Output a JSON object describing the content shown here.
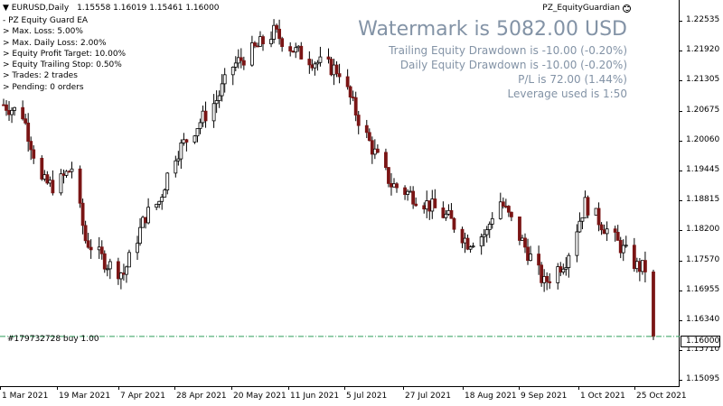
{
  "header": {
    "symbol": "EURUSD,Daily",
    "ohlc": "1.15558 1.16019 1.15461 1.16000"
  },
  "expert": {
    "name": "PZ_EquityGuardian",
    "icon": "smiley-icon"
  },
  "ea_panel": {
    "lines": [
      "- PZ Equity Guard EA",
      "> Max. Loss: 5.00%",
      "> Max. Daily Loss: 2.00%",
      "> Equity Profit Target: 10.00%",
      "> Equity Trailing Stop: 0.50%",
      "> Trades: 2 trades",
      "> Pending: 0 orders"
    ]
  },
  "watermark": {
    "title": "Watermark is 5082.00 USD",
    "lines": [
      "Trailing Equity Drawdown is -10.00 (-0.20%)",
      "Daily Equity Drawdown is -10.00 (-0.20%)",
      "P/L is 72.00 (1.44%)",
      "Leverage used is 1:50"
    ],
    "color": "#8393a6"
  },
  "order_line": {
    "label": "#179732728 buy 1.00",
    "price": 1.16,
    "color": "#2e9e5a"
  },
  "current_price": {
    "label": "1.16000",
    "value": 1.16
  },
  "colors": {
    "bull": "#000000",
    "bear": "#7a1515",
    "grid": "none"
  },
  "chart_data": {
    "type": "candlestick",
    "title": "EURUSD,Daily",
    "price_axis": {
      "ticks": [
        "1.22535",
        "1.21920",
        "1.21305",
        "1.20675",
        "1.20060",
        "1.19445",
        "1.18815",
        "1.18200",
        "1.17570",
        "1.16955",
        "1.16340",
        "1.15710",
        "1.15095"
      ],
      "ylim": [
        1.1495,
        1.2297
      ]
    },
    "time_axis": {
      "ticks": [
        "1 Mar 2021",
        "19 Mar 2021",
        "7 Apr 2021",
        "28 Apr 2021",
        "20 May 2021",
        "11 Jun 2021",
        "5 Jul 2021",
        "27 Jul 2021",
        "18 Aug 2021",
        "9 Sep 2021",
        "1 Oct 2021",
        "25 Oct 2021"
      ]
    },
    "path_days": [
      0,
      7,
      14,
      19,
      25,
      30,
      38,
      44,
      52,
      57,
      62,
      70,
      78,
      84,
      93,
      99,
      107,
      114,
      123,
      130,
      135,
      142,
      149,
      155,
      163,
      170,
      177,
      181,
      184,
      191,
      198,
      206,
      213,
      224,
      232,
      238
    ],
    "path_closes": [
      1.208,
      1.206,
      1.192,
      1.191,
      1.195,
      1.18,
      1.175,
      1.173,
      1.185,
      1.188,
      1.197,
      1.203,
      1.209,
      1.216,
      1.22,
      1.223,
      1.219,
      1.217,
      1.215,
      1.205,
      1.199,
      1.1915,
      1.1895,
      1.1875,
      1.1845,
      1.1795,
      1.1815,
      1.189,
      1.186,
      1.1785,
      1.171,
      1.176,
      1.1875,
      1.18,
      1.1745,
      1.1735
    ],
    "x_visible_days": [
      0,
      239
    ],
    "close": 1.16
  }
}
